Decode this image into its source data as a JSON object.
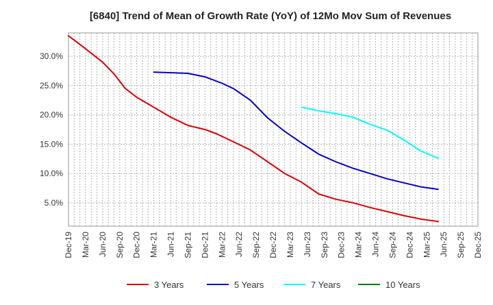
{
  "chart_data": {
    "type": "line",
    "title": "[6840]  Trend of Mean of Growth Rate (YoY) of 12Mo Mov Sum of Revenues",
    "xlabel": "",
    "ylabel": "",
    "x_ticks": [
      "Dec-19",
      "Mar-20",
      "Jun-20",
      "Sep-20",
      "Dec-20",
      "Mar-21",
      "Jun-21",
      "Sep-21",
      "Dec-21",
      "Mar-22",
      "Jun-22",
      "Sep-22",
      "Dec-22",
      "Mar-23",
      "Jun-23",
      "Sep-23",
      "Dec-23",
      "Mar-24",
      "Jun-24",
      "Sep-24",
      "Dec-24",
      "Mar-25",
      "Jun-25",
      "Sep-25",
      "Dec-25"
    ],
    "y_ticks": [
      "5.0%",
      "10.0%",
      "15.0%",
      "20.0%",
      "25.0%",
      "30.0%"
    ],
    "y_tick_values": [
      5,
      10,
      15,
      20,
      25,
      30
    ],
    "ylim": [
      1.0,
      34.0
    ],
    "xlim_months": [
      0,
      72
    ],
    "grid": true,
    "legend_position": "bottom",
    "series": [
      {
        "name": "3 Years",
        "color": "#dd0000",
        "points": [
          [
            0,
            33.5
          ],
          [
            3,
            31.3
          ],
          [
            6,
            29.0
          ],
          [
            8,
            27.0
          ],
          [
            10,
            24.5
          ],
          [
            12,
            23.0
          ],
          [
            15,
            21.3
          ],
          [
            18,
            19.6
          ],
          [
            21,
            18.2
          ],
          [
            24,
            17.5
          ],
          [
            26,
            16.8
          ],
          [
            29,
            15.4
          ],
          [
            32,
            14.0
          ],
          [
            35,
            12.0
          ],
          [
            38,
            10.0
          ],
          [
            41,
            8.5
          ],
          [
            44,
            6.5
          ],
          [
            47,
            5.6
          ],
          [
            50,
            5.0
          ],
          [
            53,
            4.2
          ],
          [
            56,
            3.5
          ],
          [
            59,
            2.8
          ],
          [
            62,
            2.2
          ],
          [
            65,
            1.8
          ]
        ]
      },
      {
        "name": "5 Years",
        "color": "#0000cc",
        "points": [
          [
            15,
            27.3
          ],
          [
            18,
            27.2
          ],
          [
            21,
            27.1
          ],
          [
            24,
            26.5
          ],
          [
            27,
            25.4
          ],
          [
            29,
            24.5
          ],
          [
            32,
            22.5
          ],
          [
            35,
            19.5
          ],
          [
            38,
            17.2
          ],
          [
            41,
            15.2
          ],
          [
            44,
            13.3
          ],
          [
            47,
            12.0
          ],
          [
            50,
            10.9
          ],
          [
            53,
            10.0
          ],
          [
            56,
            9.1
          ],
          [
            59,
            8.4
          ],
          [
            62,
            7.7
          ],
          [
            65,
            7.3
          ]
        ]
      },
      {
        "name": "7 Years",
        "color": "#00ffff",
        "points": [
          [
            41,
            21.3
          ],
          [
            44,
            20.7
          ],
          [
            47,
            20.2
          ],
          [
            50,
            19.6
          ],
          [
            53,
            18.4
          ],
          [
            56,
            17.4
          ],
          [
            59,
            15.7
          ],
          [
            62,
            13.8
          ],
          [
            65,
            12.6
          ]
        ]
      },
      {
        "name": "10 Years",
        "color": "#007700",
        "points": []
      }
    ]
  }
}
